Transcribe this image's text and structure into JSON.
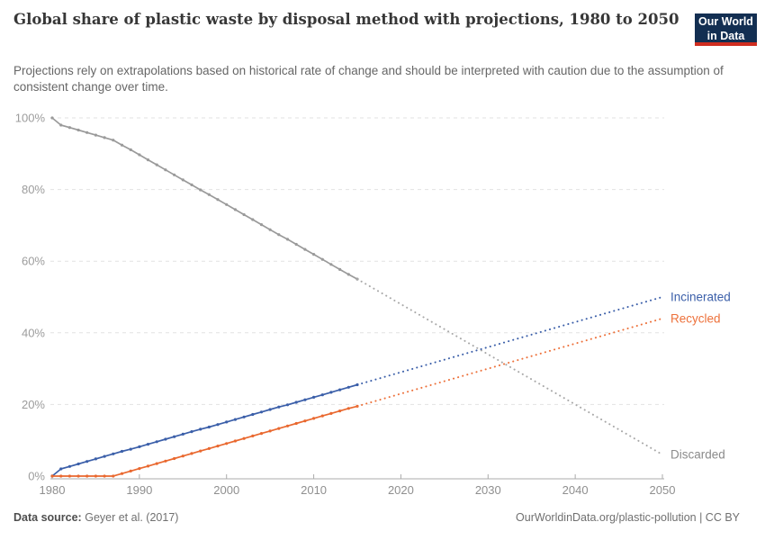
{
  "header": {
    "title": "Global share of plastic waste by disposal method with projections, 1980 to 2050",
    "subtitle": "Projections rely on extrapolations based on historical rate of change and should be interpreted with caution due to the assumption of consistent change over time.",
    "logo": {
      "line1": "Our World",
      "line2": "in Data"
    }
  },
  "footer": {
    "source_label": "Data source:",
    "source_value": "Geyer et al. (2017)",
    "credit": "OurWorldinData.org/plastic-pollution | CC BY"
  },
  "chart_data": {
    "type": "line",
    "title": "Global share of plastic waste by disposal method with projections, 1980 to 2050",
    "xlabel": "",
    "ylabel": "",
    "xlim": [
      1980,
      2050
    ],
    "ylim": [
      0,
      100
    ],
    "x_ticks": [
      1980,
      1990,
      2000,
      2010,
      2020,
      2030,
      2040,
      2050
    ],
    "y_ticks": [
      0,
      20,
      40,
      60,
      80,
      100
    ],
    "y_suffix": "%",
    "grid": "horizontal-dashed",
    "legend_position": "line-end-labels",
    "colors": {
      "gridline": "#e2e2e2",
      "axis": "#ababab",
      "y_tick_label": "#9c9c9c",
      "x_tick_label": "#8f8f8f"
    },
    "x": [
      1980,
      1981,
      1982,
      1983,
      1984,
      1985,
      1986,
      1987,
      1988,
      1989,
      1990,
      1991,
      1992,
      1993,
      1994,
      1995,
      1996,
      1997,
      1998,
      1999,
      2000,
      2001,
      2002,
      2003,
      2004,
      2005,
      2006,
      2007,
      2008,
      2009,
      2010,
      2011,
      2012,
      2013,
      2014,
      2015
    ],
    "series": [
      {
        "name": "Discarded",
        "color": "#9a9a9a",
        "projection_color": "#a8a8a8",
        "label_color": "#8b8b8b",
        "values": [
          100,
          98,
          97.3,
          96.6,
          95.9,
          95.2,
          94.5,
          93.8,
          92.4,
          91.1,
          89.7,
          88.3,
          86.9,
          85.5,
          84.1,
          82.7,
          81.3,
          79.9,
          78.6,
          77.2,
          75.8,
          74.4,
          73,
          71.6,
          70.2,
          68.8,
          67.4,
          66.1,
          64.7,
          63.3,
          61.9,
          60.5,
          59.1,
          57.7,
          56.3,
          55
        ],
        "projection": {
          "x": [
            2015,
            2050
          ],
          "values": [
            55,
            6
          ]
        }
      },
      {
        "name": "Incinerated",
        "color": "#3b5fa9",
        "projection_color": "#3b5fa9",
        "label_color": "#3b5fa9",
        "values": [
          0,
          2,
          2.7,
          3.4,
          4.1,
          4.8,
          5.5,
          6.2,
          6.9,
          7.5,
          8.2,
          8.9,
          9.6,
          10.3,
          11,
          11.7,
          12.4,
          13.1,
          13.7,
          14.4,
          15.1,
          15.8,
          16.5,
          17.2,
          17.9,
          18.6,
          19.3,
          19.9,
          20.6,
          21.3,
          22,
          22.7,
          23.4,
          24.1,
          24.8,
          25.5
        ],
        "projection": {
          "x": [
            2015,
            2050
          ],
          "values": [
            25.5,
            50
          ]
        }
      },
      {
        "name": "Recycled",
        "color": "#e9682f",
        "projection_color": "#ed713b",
        "label_color": "#ed713b",
        "values": [
          0,
          0,
          0,
          0,
          0,
          0,
          0,
          0,
          0.7,
          1.4,
          2.1,
          2.8,
          3.5,
          4.2,
          4.9,
          5.6,
          6.3,
          7,
          7.7,
          8.4,
          9.1,
          9.8,
          10.5,
          11.2,
          11.9,
          12.6,
          13.3,
          14,
          14.7,
          15.4,
          16.1,
          16.8,
          17.5,
          18.2,
          18.9,
          19.5
        ],
        "projection": {
          "x": [
            2015,
            2050
          ],
          "values": [
            19.5,
            44
          ]
        }
      }
    ]
  }
}
